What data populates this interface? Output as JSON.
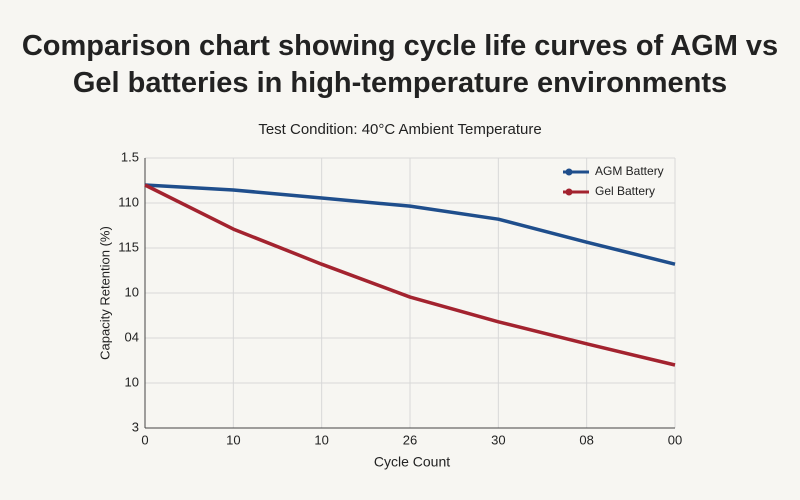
{
  "chart_data": {
    "type": "line",
    "title": "Comparison chart showing cycle life curves of AGM vs Gel batteries in high-temperature environments",
    "subtitle": "Test Condition: 40°C Ambient Temperature",
    "x_label": "Cycle Count",
    "y_label": "Capacity Retention (%)",
    "x": [
      0,
      1,
      2,
      3,
      4,
      5,
      6
    ],
    "xlim": [
      0,
      6
    ],
    "xticks": [
      0,
      {
        "value": 1,
        "label": "10"
      },
      {
        "value": 2,
        "label": "10"
      },
      {
        "value": 3,
        "label": "26"
      },
      {
        "value": 4,
        "label": "30"
      },
      {
        "value": 5,
        "label": "08"
      },
      {
        "value": 6,
        "label": "00"
      }
    ],
    "ylim": [
      0,
      6
    ],
    "yticks": [
      {
        "value": 0,
        "label": "3"
      },
      {
        "value": 1,
        "label": "10"
      },
      {
        "value": 2,
        "label": "04"
      },
      {
        "value": 3,
        "label": "10"
      },
      {
        "value": 4,
        "label": "115"
      },
      {
        "value": 5,
        "label": "110"
      },
      {
        "value": 6,
        "label": "1.5"
      }
    ],
    "grid": true,
    "legend": "top-right",
    "series": [
      {
        "name": "AGM Battery",
        "color": "#1f4e8c",
        "values": [
          5.4,
          5.29,
          5.11,
          4.93,
          4.64,
          4.13,
          3.64
        ]
      },
      {
        "name": "Gel Battery",
        "color": "#a3232f",
        "values": [
          5.4,
          4.42,
          3.64,
          2.91,
          2.36,
          1.87,
          1.4
        ]
      }
    ]
  }
}
